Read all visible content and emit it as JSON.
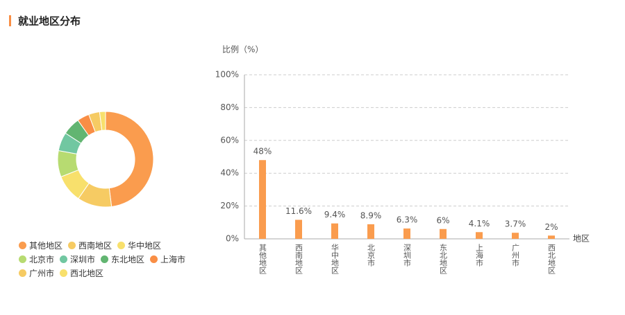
{
  "header": {
    "title": "就业地区分布"
  },
  "chart_data": [
    {
      "type": "pie",
      "categories": [
        "其他地区",
        "西南地区",
        "华中地区",
        "北京市",
        "深圳市",
        "东北地区",
        "上海市",
        "广州市",
        "西北地区"
      ],
      "values": [
        48,
        11.6,
        9.4,
        8.9,
        6.3,
        6,
        4.1,
        3.7,
        2
      ],
      "colors": [
        "#fa9c4e",
        "#f6cb63",
        "#f8e06c",
        "#b7db71",
        "#71c7a1",
        "#62b571",
        "#f98e45",
        "#f6cb63",
        "#f8e06c"
      ]
    },
    {
      "type": "bar",
      "y_label": "比例（%）",
      "x_label": "地区",
      "categories": [
        "其他地区",
        "西南地区",
        "华中地区",
        "北京市",
        "深圳市",
        "东北地区",
        "上海市",
        "广州市",
        "西北地区"
      ],
      "values": [
        48,
        11.6,
        9.4,
        8.9,
        6.3,
        6,
        4.1,
        3.7,
        2
      ],
      "value_labels": [
        "48%",
        "11.6%",
        "9.4%",
        "8.9%",
        "6.3%",
        "6%",
        "4.1%",
        "3.7%",
        "2%"
      ],
      "color": "#fa9c4e",
      "ylim": [
        0,
        100
      ],
      "yticks": [
        {
          "value": 0,
          "label": "0%"
        },
        {
          "value": 20,
          "label": "20%"
        },
        {
          "value": 40,
          "label": "40%"
        },
        {
          "value": 60,
          "label": "60%"
        },
        {
          "value": 80,
          "label": "80%"
        },
        {
          "value": 100,
          "label": "100%"
        }
      ],
      "grid": true
    }
  ]
}
